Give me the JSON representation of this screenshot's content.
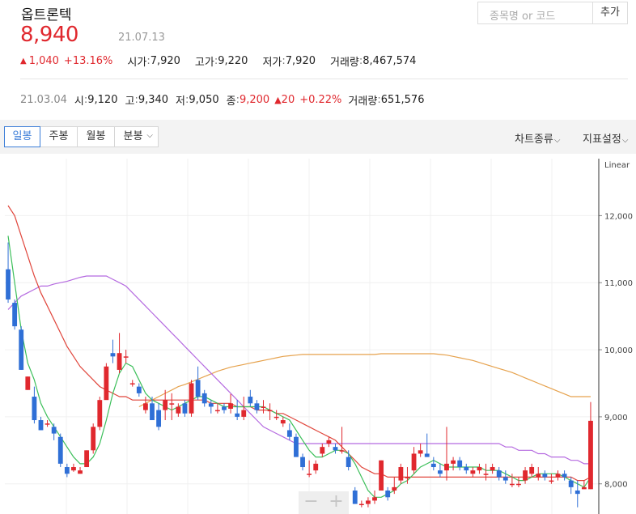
{
  "header": {
    "stock_name": "옵트론텍",
    "price": "8,940",
    "date": "21.07.13",
    "change_arrow": "▲",
    "change_amount": "1,040",
    "change_pct": "+13.16%",
    "open_label": "시가",
    "open": "7,920",
    "high_label": "고가",
    "high": "9,220",
    "low_label": "저가",
    "low": "7,920",
    "volume_label": "거래량",
    "volume": "8,467,574"
  },
  "search": {
    "placeholder": "종목명 or 코드",
    "add_label": "추가"
  },
  "hover_info": {
    "date": "21.03.04",
    "open_label": "시",
    "open": "9,120",
    "high_label": "고",
    "high": "9,340",
    "low_label": "저",
    "low": "9,050",
    "close_label": "종",
    "close": "9,200",
    "change_arrow": "▲",
    "change_amount": "20",
    "change_pct": "+0.22%",
    "volume_label": "거래량",
    "volume": "651,576"
  },
  "toolbar": {
    "tabs": [
      "일봉",
      "주봉",
      "월봉",
      "분봉"
    ],
    "active_tab": 0,
    "chart_type_label": "차트종류",
    "indicator_label": "지표설정"
  },
  "colors": {
    "up": "#e0282e",
    "down": "#2f6fd6",
    "ma5": "#3cbf5a",
    "ma20": "#e0453b",
    "ma60": "#b56ae0",
    "ma120": "#e6a24d"
  },
  "chart_data": {
    "type": "candlestick",
    "scale_label": "Linear",
    "y_ticks": [
      8000,
      9000,
      10000,
      11000,
      12000
    ],
    "y_tick_labels": [
      "8,000",
      "9,000",
      "10,000",
      "11,000",
      "12,000"
    ],
    "ylim": [
      7550,
      12850
    ],
    "candles": [
      [
        11200,
        11600,
        10700,
        10750
      ],
      [
        10700,
        10750,
        10300,
        10350
      ],
      [
        10300,
        10350,
        9700,
        9700
      ],
      [
        9400,
        9600,
        9400,
        9600
      ],
      [
        9300,
        9450,
        8900,
        8950
      ],
      [
        8950,
        9000,
        8800,
        8800
      ],
      [
        8900,
        8950,
        8850,
        8900
      ],
      [
        8850,
        8900,
        8650,
        8750
      ],
      [
        8700,
        8750,
        8250,
        8300
      ],
      [
        8250,
        8300,
        8100,
        8150
      ],
      [
        8200,
        8300,
        8180,
        8250
      ],
      [
        8150,
        8250,
        8150,
        8200
      ],
      [
        8250,
        8500,
        8250,
        8500
      ],
      [
        8500,
        8900,
        8450,
        8850
      ],
      [
        8850,
        9300,
        8800,
        9250
      ],
      [
        9250,
        9800,
        9300,
        9750
      ],
      [
        9950,
        10150,
        9800,
        9900
      ],
      [
        9700,
        10250,
        9650,
        9950
      ],
      [
        9900,
        10000,
        9800,
        9900
      ],
      [
        9500,
        9550,
        9450,
        9500
      ],
      [
        9450,
        9500,
        9300,
        9350
      ],
      [
        9100,
        9300,
        9050,
        9200
      ],
      [
        9200,
        9300,
        8950,
        8950
      ],
      [
        9100,
        9200,
        8800,
        8850
      ],
      [
        9100,
        9400,
        8950,
        9250
      ],
      [
        9200,
        9350,
        8950,
        9200
      ],
      [
        9050,
        9200,
        9000,
        9150
      ],
      [
        9200,
        9250,
        9000,
        9050
      ],
      [
        9050,
        9550,
        9000,
        9500
      ],
      [
        9550,
        9750,
        9250,
        9300
      ],
      [
        9350,
        9400,
        9150,
        9200
      ],
      [
        9200,
        9250,
        9050,
        9150
      ],
      [
        9100,
        9200,
        9050,
        9100
      ],
      [
        9150,
        9200,
        9050,
        9100
      ],
      [
        9120,
        9340,
        9050,
        9200
      ],
      [
        9050,
        9250,
        8950,
        9000
      ],
      [
        9000,
        9300,
        8950,
        9100
      ],
      [
        9300,
        9400,
        9150,
        9200
      ],
      [
        9200,
        9250,
        9050,
        9100
      ],
      [
        9150,
        9250,
        9050,
        9150
      ],
      [
        9100,
        9200,
        8950,
        9100
      ],
      [
        9000,
        9100,
        8950,
        9000
      ],
      [
        8900,
        9000,
        8850,
        8950
      ],
      [
        8800,
        8900,
        8650,
        8700
      ],
      [
        8700,
        8750,
        8400,
        8400
      ],
      [
        8400,
        8450,
        8200,
        8250
      ],
      [
        8150,
        8350,
        8100,
        8150
      ],
      [
        8200,
        8350,
        8150,
        8300
      ],
      [
        8450,
        8600,
        8400,
        8550
      ],
      [
        8600,
        8700,
        8550,
        8650
      ],
      [
        8550,
        8600,
        8450,
        8500
      ],
      [
        8500,
        8850,
        8450,
        8500
      ],
      [
        8400,
        8500,
        8200,
        8250
      ],
      [
        7900,
        7950,
        7700,
        7700
      ],
      [
        7700,
        7750,
        7650,
        7700
      ],
      [
        7700,
        7800,
        7650,
        7750
      ],
      [
        7750,
        7900,
        7700,
        7800
      ],
      [
        7900,
        8350,
        7900,
        8350
      ],
      [
        7900,
        7950,
        7750,
        7800
      ],
      [
        7900,
        8100,
        7850,
        7950
      ],
      [
        8050,
        8300,
        8000,
        8250
      ],
      [
        8100,
        8250,
        8000,
        8100
      ],
      [
        8200,
        8550,
        8150,
        8450
      ],
      [
        8450,
        8600,
        8400,
        8500
      ],
      [
        8450,
        8750,
        8400,
        8400
      ],
      [
        8300,
        8400,
        8200,
        8250
      ],
      [
        8200,
        8300,
        8100,
        8150
      ],
      [
        8200,
        8850,
        8050,
        8300
      ],
      [
        8300,
        8400,
        8200,
        8350
      ],
      [
        8350,
        8400,
        8200,
        8250
      ],
      [
        8250,
        8300,
        8150,
        8200
      ],
      [
        8150,
        8250,
        8100,
        8200
      ],
      [
        8200,
        8300,
        8150,
        8250
      ],
      [
        8150,
        8300,
        8050,
        8150
      ],
      [
        8200,
        8300,
        8150,
        8250
      ],
      [
        8200,
        8250,
        8050,
        8100
      ],
      [
        8100,
        8200,
        8000,
        8050
      ],
      [
        8000,
        8150,
        7950,
        8000
      ],
      [
        8000,
        8100,
        7950,
        8000
      ],
      [
        8050,
        8250,
        8000,
        8200
      ],
      [
        8150,
        8300,
        8100,
        8250
      ],
      [
        8100,
        8250,
        8050,
        8150
      ],
      [
        8150,
        8200,
        8050,
        8100
      ],
      [
        8050,
        8150,
        8000,
        8050
      ],
      [
        8100,
        8200,
        8050,
        8150
      ],
      [
        8150,
        8200,
        8050,
        8100
      ],
      [
        8050,
        8100,
        7850,
        7950
      ],
      [
        7900,
        8050,
        7650,
        7850
      ],
      [
        7920,
        8050,
        7920,
        7950
      ],
      [
        7920,
        9220,
        7920,
        8940
      ]
    ],
    "ma5": [
      11700,
      11000,
      10300,
      9800,
      9550,
      9200,
      9000,
      8850,
      8700,
      8550,
      8400,
      8300,
      8300,
      8400,
      8600,
      8950,
      9350,
      9650,
      9800,
      9750,
      9550,
      9350,
      9250,
      9200,
      9150,
      9100,
      9150,
      9200,
      9250,
      9300,
      9300,
      9250,
      9200,
      9150,
      9150,
      9150,
      9150,
      9150,
      9150,
      9150,
      9100,
      9050,
      9000,
      8950,
      8800,
      8650,
      8500,
      8400,
      8400,
      8450,
      8500,
      8500,
      8450,
      8300,
      8100,
      7900,
      7800,
      7800,
      7850,
      7900,
      8000,
      8050,
      8150,
      8250,
      8300,
      8350,
      8300,
      8250,
      8250,
      8250,
      8250,
      8250,
      8250,
      8200,
      8200,
      8200,
      8150,
      8100,
      8050,
      8050,
      8100,
      8150,
      8150,
      8150,
      8150,
      8100,
      8050,
      8000,
      7950,
      8100
    ],
    "ma20": [
      12150,
      12000,
      11700,
      11400,
      11100,
      10850,
      10650,
      10450,
      10250,
      10050,
      9900,
      9750,
      9650,
      9550,
      9450,
      9400,
      9350,
      9300,
      9300,
      9250,
      9250,
      9250,
      9250,
      9250,
      9250,
      9250,
      9250,
      9250,
      9250,
      9250,
      9250,
      9200,
      9200,
      9200,
      9200,
      9150,
      9150,
      9150,
      9100,
      9100,
      9100,
      9050,
      9050,
      9000,
      8950,
      8900,
      8850,
      8800,
      8750,
      8700,
      8650,
      8550,
      8450,
      8350,
      8250,
      8200,
      8150,
      8150,
      8100,
      8100,
      8100,
      8100,
      8100,
      8100,
      8100,
      8100,
      8100,
      8100,
      8100,
      8100,
      8100,
      8100,
      8100,
      8100,
      8100,
      8100,
      8100,
      8100,
      8100,
      8100,
      8100,
      8100,
      8100,
      8100,
      8100,
      8100,
      8100,
      8050,
      8050,
      8100
    ],
    "ma60": [
      10600,
      10700,
      10800,
      10850,
      10900,
      10950,
      10950,
      10980,
      11000,
      11020,
      11050,
      11080,
      11100,
      11100,
      11100,
      11100,
      11050,
      11000,
      10950,
      10850,
      10750,
      10650,
      10550,
      10450,
      10350,
      10250,
      10150,
      10050,
      9950,
      9850,
      9750,
      9650,
      9550,
      9450,
      9350,
      9250,
      9150,
      9050,
      8950,
      8850,
      8800,
      8750,
      8700,
      8650,
      8600,
      8600,
      8600,
      8600,
      8600,
      8600,
      8600,
      8600,
      8600,
      8600,
      8600,
      8600,
      8600,
      8600,
      8600,
      8600,
      8600,
      8600,
      8600,
      8600,
      8600,
      8600,
      8600,
      8600,
      8600,
      8600,
      8600,
      8600,
      8600,
      8600,
      8600,
      8600,
      8550,
      8550,
      8500,
      8500,
      8500,
      8450,
      8450,
      8400,
      8400,
      8400,
      8350,
      8350,
      8300,
      8300
    ],
    "ma120": [
      null,
      null,
      null,
      null,
      null,
      null,
      null,
      null,
      null,
      null,
      null,
      null,
      null,
      null,
      null,
      null,
      null,
      null,
      null,
      null,
      9150,
      9200,
      9250,
      9300,
      9350,
      9400,
      9450,
      9480,
      9520,
      9560,
      9600,
      9640,
      9680,
      9710,
      9740,
      9760,
      9780,
      9800,
      9820,
      9840,
      9860,
      9880,
      9900,
      9910,
      9920,
      9930,
      9930,
      9930,
      9930,
      9930,
      9930,
      9930,
      9930,
      9930,
      9930,
      9930,
      9930,
      9940,
      9940,
      9940,
      9940,
      9940,
      9940,
      9940,
      9940,
      9940,
      9930,
      9920,
      9900,
      9880,
      9860,
      9840,
      9810,
      9780,
      9750,
      9720,
      9690,
      9660,
      9620,
      9580,
      9540,
      9500,
      9460,
      9420,
      9380,
      9340,
      9300,
      9300,
      9300,
      9300
    ]
  }
}
